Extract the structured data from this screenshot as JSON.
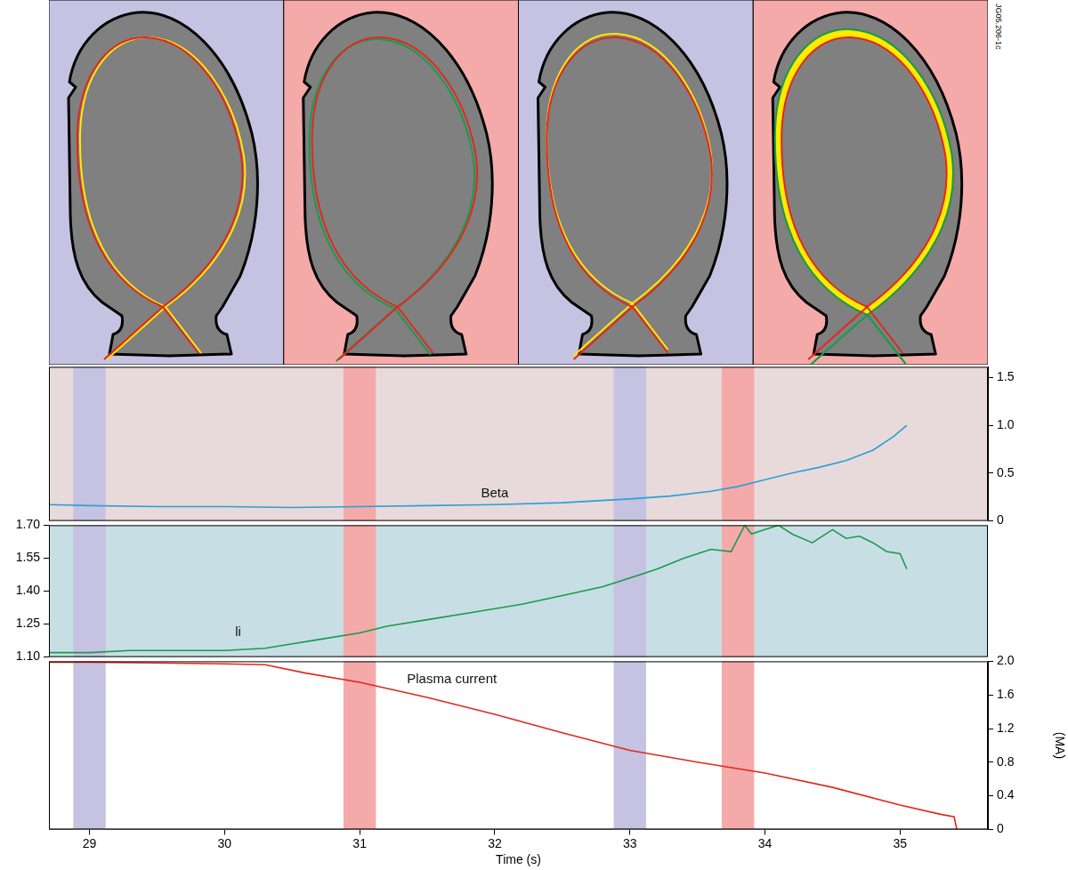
{
  "figure_id": "JG05.206-1c",
  "highlight_bands": [
    {
      "start": 28.88,
      "end": 29.12,
      "color": "#c6c2e2"
    },
    {
      "start": 30.88,
      "end": 31.12,
      "color": "#f5aaaa"
    },
    {
      "start": 32.88,
      "end": 33.12,
      "color": "#c6c2e2"
    },
    {
      "start": 33.68,
      "end": 33.92,
      "color": "#f5aaaa"
    }
  ],
  "chart_data": [
    {
      "type": "line",
      "x": [
        28.7,
        29.0,
        29.5,
        30.0,
        30.5,
        31.0,
        31.5,
        32.0,
        32.5,
        33.0,
        33.3,
        33.6,
        33.8,
        34.0,
        34.2,
        34.4,
        34.6,
        34.8,
        34.95,
        35.05
      ],
      "values": [
        0.17,
        0.16,
        0.15,
        0.15,
        0.14,
        0.15,
        0.16,
        0.17,
        0.19,
        0.23,
        0.26,
        0.31,
        0.36,
        0.43,
        0.5,
        0.56,
        0.63,
        0.74,
        0.88,
        1.0
      ],
      "color": "#2a9fd9",
      "xlim": [
        28.7,
        35.65
      ],
      "ylim": [
        0,
        1.61
      ],
      "yticks": [
        0,
        0.5,
        {
          "value": 1,
          "label": "1.0"
        },
        1.5
      ],
      "tick_labels": "y",
      "grid": false,
      "annotations": [
        {
          "text": "Beta",
          "x": 32.0,
          "y": 0.22
        }
      ]
    },
    {
      "type": "line",
      "x": [
        28.7,
        29.0,
        29.3,
        29.6,
        30.0,
        30.3,
        30.5,
        30.7,
        31.0,
        31.2,
        31.5,
        31.8,
        32.0,
        32.2,
        32.5,
        32.8,
        33.0,
        33.2,
        33.4,
        33.6,
        33.75,
        33.85,
        33.9,
        34.0,
        34.1,
        34.2,
        34.35,
        34.5,
        34.6,
        34.7,
        34.8,
        34.9,
        35.0,
        35.05
      ],
      "values": [
        1.12,
        1.12,
        1.13,
        1.13,
        1.13,
        1.14,
        1.16,
        1.18,
        1.21,
        1.24,
        1.27,
        1.3,
        1.32,
        1.34,
        1.38,
        1.42,
        1.46,
        1.5,
        1.55,
        1.59,
        1.58,
        1.7,
        1.66,
        1.68,
        1.7,
        1.66,
        1.62,
        1.68,
        1.64,
        1.65,
        1.62,
        1.58,
        1.57,
        1.5
      ],
      "color": "#1a9a4a",
      "xlim": [
        28.7,
        35.65
      ],
      "ylim": [
        1.1,
        1.7
      ],
      "yticks": [
        {
          "value": 1.1,
          "label": "1.10"
        },
        1.25,
        {
          "value": 1.4,
          "label": "1.40"
        },
        1.55,
        {
          "value": 1.7,
          "label": "1.70"
        }
      ],
      "tick_labels": "y",
      "grid": false,
      "annotations": [
        {
          "text": "li",
          "x": 30.1,
          "y": 1.18
        }
      ]
    },
    {
      "type": "line",
      "x": [
        28.7,
        29.0,
        29.5,
        30.0,
        30.3,
        30.6,
        31.0,
        31.5,
        32.0,
        32.5,
        33.0,
        33.5,
        34.0,
        34.5,
        35.0,
        35.3,
        35.4,
        35.42
      ],
      "values": [
        1.99,
        1.99,
        1.98,
        1.97,
        1.96,
        1.86,
        1.75,
        1.57,
        1.37,
        1.15,
        0.94,
        0.8,
        0.67,
        0.5,
        0.29,
        0.18,
        0.15,
        0.0
      ],
      "color": "#e0281e",
      "xlim": [
        28.7,
        35.65
      ],
      "xticks": [
        29,
        30,
        31,
        32,
        33,
        34,
        35
      ],
      "x_label": "Time (s)",
      "ylim": [
        0,
        2.0
      ],
      "yticks": [
        0,
        0.4,
        0.8,
        1.2,
        1.6,
        {
          "value": 2,
          "label": "2.0"
        }
      ],
      "y_label": "(MA)",
      "grid": false,
      "annotations": [
        {
          "text": "Plasma current",
          "x": 31.35,
          "y": 1.7
        }
      ]
    }
  ]
}
